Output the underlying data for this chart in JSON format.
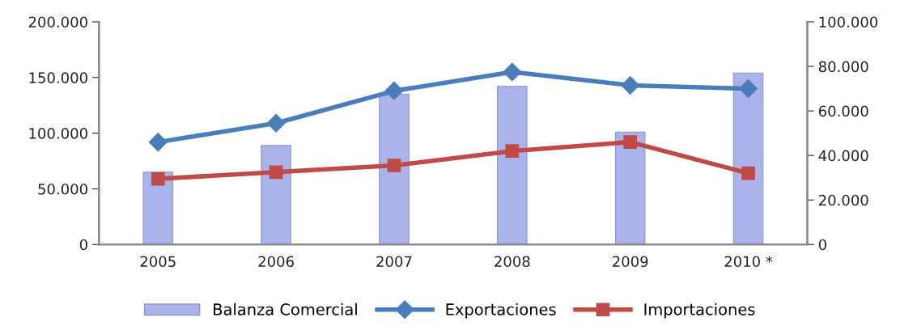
{
  "chart_data": {
    "type": "bar",
    "categories": [
      "2005",
      "2006",
      "2007",
      "2008",
      "2009",
      "2010 *"
    ],
    "series": [
      {
        "name": "Balanza Comercial",
        "color": "#aab4ea",
        "values": [
          65000,
          89000,
          135000,
          142000,
          101000,
          154000
        ]
      },
      {
        "name": "Exportaciones",
        "type": "line",
        "axis": "y2",
        "marker": "diamond",
        "color": "#4a7ebb",
        "values": [
          46000,
          54500,
          69000,
          77500,
          71500,
          70000
        ]
      },
      {
        "name": "Importaciones",
        "type": "line",
        "axis": "y2",
        "marker": "square",
        "color": "#be4b48",
        "values": [
          29500,
          32500,
          35500,
          42000,
          46000,
          32000
        ]
      }
    ],
    "ylim": [
      0,
      200000
    ],
    "yticks": [
      {
        "value": 0,
        "label": "0"
      },
      {
        "value": 50000,
        "label": "50.000"
      },
      {
        "value": 100000,
        "label": "100.000"
      },
      {
        "value": 150000,
        "label": "150.000"
      },
      {
        "value": 200000,
        "label": "200.000"
      }
    ],
    "y2lim": [
      0,
      100000
    ],
    "y2ticks": [
      {
        "value": 0,
        "label": "0"
      },
      {
        "value": 20000,
        "label": "20.000"
      },
      {
        "value": 40000,
        "label": "40.000"
      },
      {
        "value": 60000,
        "label": "60.000"
      },
      {
        "value": 80000,
        "label": "80.000"
      },
      {
        "value": 100000,
        "label": "100.000"
      }
    ],
    "legend": "bottom",
    "grid": false
  }
}
